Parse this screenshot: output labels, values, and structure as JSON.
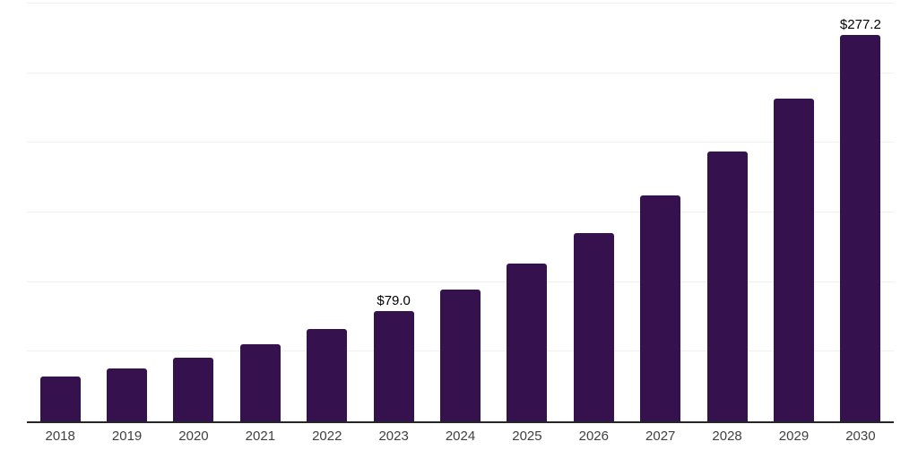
{
  "chart_data": {
    "type": "bar",
    "title": "",
    "xlabel": "",
    "ylabel": "",
    "categories": [
      "2018",
      "2019",
      "2020",
      "2021",
      "2022",
      "2023",
      "2024",
      "2025",
      "2026",
      "2027",
      "2028",
      "2029",
      "2030"
    ],
    "values": [
      32.0,
      37.9,
      45.6,
      55.5,
      66.2,
      79.0,
      94.6,
      113.2,
      135.4,
      162.0,
      193.8,
      231.8,
      277.2
    ],
    "data_labels": {
      "2023": "$79.0",
      "2030": "$277.2"
    },
    "ylim": [
      0,
      302.6
    ],
    "gridlines": [
      50,
      100,
      150,
      200,
      250,
      300
    ],
    "grid": "horizontal-only",
    "legend": "none",
    "colors": {
      "bar": "#35124E",
      "gridline": "#f0f0f0",
      "axis_line": "#262626",
      "tick_label": "#404040",
      "value_label": "#000000",
      "background": "#ffffff"
    }
  }
}
